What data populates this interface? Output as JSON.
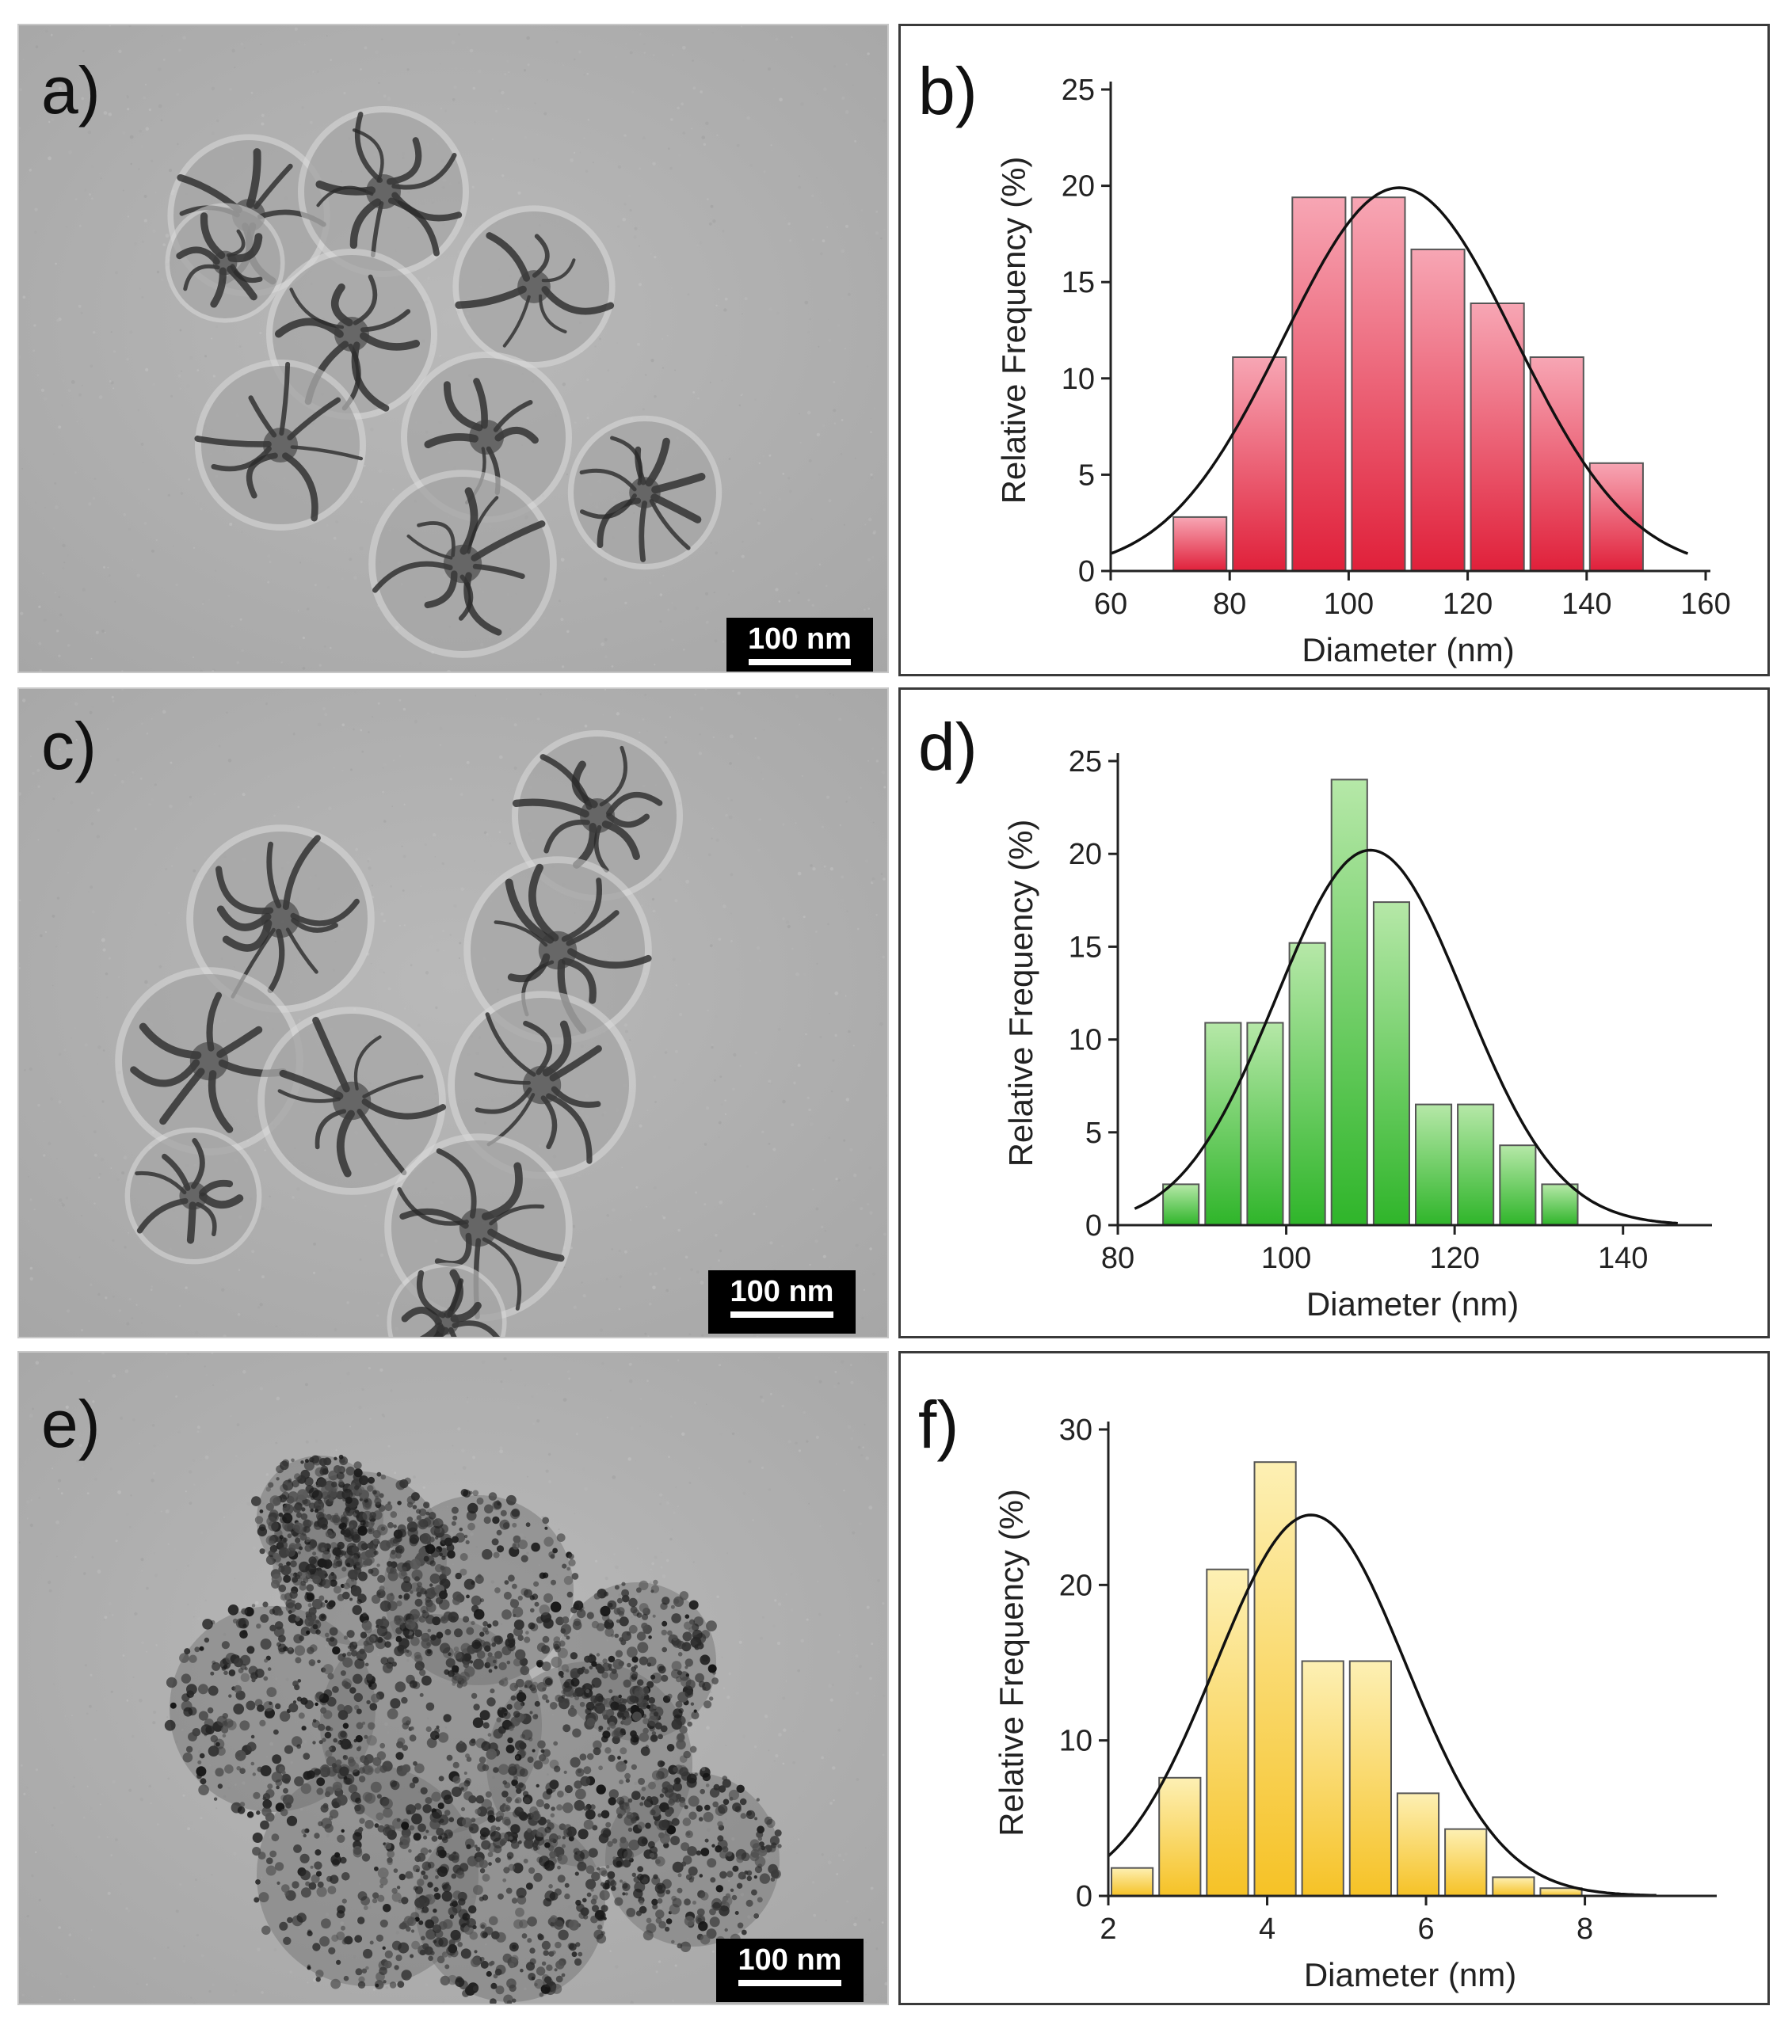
{
  "figure": {
    "panels": [
      {
        "id": "a",
        "label": "a)",
        "kind": "tem",
        "scale_bar": "100 nm",
        "texture": "flower"
      },
      {
        "id": "b",
        "label": "b)",
        "kind": "chart"
      },
      {
        "id": "c",
        "label": "c)",
        "kind": "tem",
        "scale_bar": "100 nm",
        "texture": "flower"
      },
      {
        "id": "d",
        "label": "d)",
        "kind": "chart"
      },
      {
        "id": "e",
        "label": "e)",
        "kind": "tem",
        "scale_bar": "100 nm",
        "texture": "particles"
      },
      {
        "id": "f",
        "label": "f)",
        "kind": "chart"
      }
    ]
  },
  "chart_data": [
    {
      "panel": "b",
      "type": "bar",
      "xlabel": "Diameter (nm)",
      "ylabel": "Relative Frequency (%)",
      "xlim": [
        60,
        160
      ],
      "ylim": [
        0,
        25
      ],
      "xticks": [
        60,
        80,
        100,
        120,
        140,
        160
      ],
      "yticks": [
        0,
        5,
        10,
        15,
        20,
        25
      ],
      "bin_width": 10,
      "bins": [
        75,
        85,
        95,
        105,
        115,
        125,
        135,
        145
      ],
      "values": [
        2.8,
        11.1,
        19.4,
        19.4,
        16.7,
        13.9,
        11.1,
        5.6
      ],
      "fit": {
        "type": "gaussian",
        "mean": 108.5,
        "sigma": 19.5,
        "amplitude": 19.9,
        "range": [
          60,
          157
        ]
      },
      "colors": {
        "top": "#f7a6b4",
        "bottom": "#e0203a",
        "edge": "#555555"
      }
    },
    {
      "panel": "d",
      "type": "bar",
      "xlabel": "Diameter (nm)",
      "ylabel": "Relative Frequency (%)",
      "xlim": [
        80,
        150
      ],
      "ylim": [
        0,
        25
      ],
      "xticks": [
        80,
        100,
        120,
        140
      ],
      "yticks": [
        0,
        5,
        10,
        15,
        20,
        25
      ],
      "bin_width": 5,
      "bins": [
        87.5,
        92.5,
        97.5,
        102.5,
        107.5,
        112.5,
        117.5,
        122.5,
        127.5,
        132.5,
        137.5,
        142.5
      ],
      "values": [
        2.2,
        10.9,
        10.9,
        15.2,
        24.0,
        17.4,
        6.5,
        6.5,
        4.3,
        2.2,
        0,
        0
      ],
      "fit": {
        "type": "gaussian",
        "mean": 110,
        "sigma": 11.2,
        "amplitude": 20.2,
        "range": [
          82,
          146.5
        ]
      },
      "colors": {
        "top": "#b6e8a8",
        "bottom": "#2fb52a",
        "edge": "#555555"
      }
    },
    {
      "panel": "f",
      "type": "bar",
      "xlabel": "Diameter (nm)",
      "ylabel": "Relative Frequency (%)",
      "xlim": [
        2,
        9.6
      ],
      "ylim": [
        0,
        30
      ],
      "xticks": [
        2,
        4,
        6,
        8
      ],
      "yticks": [
        0,
        10,
        20,
        30
      ],
      "bin_width": 0.6,
      "bins": [
        2.3,
        2.9,
        3.5,
        4.1,
        4.7,
        5.3,
        5.9,
        6.5,
        7.1,
        7.7,
        8.3
      ],
      "values": [
        1.8,
        7.6,
        21.0,
        27.9,
        15.1,
        15.1,
        6.6,
        4.3,
        1.2,
        0.5,
        0
      ],
      "fit": {
        "type": "gaussian",
        "mean": 4.55,
        "sigma": 1.2,
        "amplitude": 24.5,
        "range": [
          2,
          8.9
        ]
      },
      "colors": {
        "top": "#fdf0b4",
        "bottom": "#f6c226",
        "edge": "#555555"
      }
    }
  ]
}
